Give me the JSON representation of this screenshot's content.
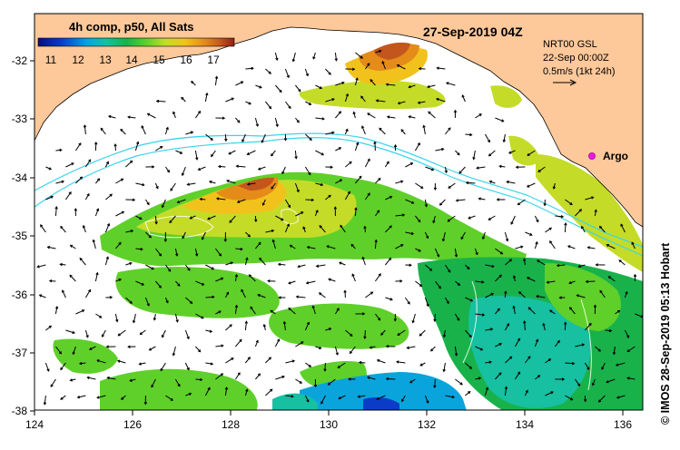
{
  "legend": {
    "title": "4h comp, p50, All Sats",
    "ticks": [
      "11",
      "12",
      "13",
      "14",
      "15",
      "16",
      "17"
    ],
    "colors": [
      "#06107a",
      "#0a3cc8",
      "#0aa4dc",
      "#16c0a0",
      "#19b24a",
      "#5fd02a",
      "#c4dc28",
      "#f2c21c",
      "#e48b1a",
      "#c3561c",
      "#8e1f12"
    ]
  },
  "title": "27-Sep-2019 04Z",
  "info": {
    "line1": "NRT00 GSL",
    "line2": "22-Sep 00:00Z",
    "line3": "0.5m/s (1kt 24h)"
  },
  "argo_label": "Argo",
  "credit": "© IMOS 28-Sep-2019 05:13 Hobart",
  "axes": {
    "x_ticks": [
      "124",
      "126",
      "128",
      "130",
      "132",
      "134",
      "136"
    ],
    "y_ticks": [
      "-32",
      "-33",
      "-34",
      "-35",
      "-36",
      "-37",
      "-38"
    ]
  },
  "colors": {
    "land": "#fdc89a",
    "isobath": "#3ad4ea",
    "argo": "#e81ae0"
  }
}
